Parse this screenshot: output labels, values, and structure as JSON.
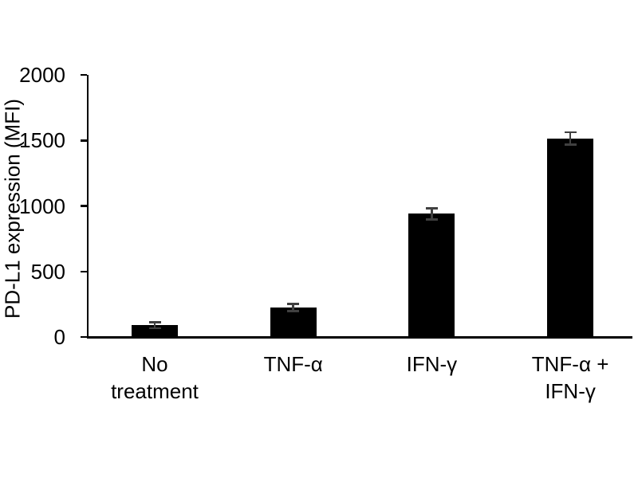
{
  "figure": {
    "background": "#ffffff"
  },
  "chart_data": {
    "type": "bar",
    "title": "",
    "ylabel": "PD-L1 expression (MFI)",
    "xlabel": "",
    "categories": [
      "No\ntreatment",
      "TNF-α",
      "IFN-γ",
      "TNF-α +\nIFN-γ"
    ],
    "values": [
      90,
      225,
      940,
      1515
    ],
    "errors": [
      30,
      35,
      50,
      55
    ],
    "ylim": [
      0,
      2000
    ],
    "yticks": [
      0,
      500,
      1000,
      1500,
      2000
    ],
    "grid": false,
    "legend": "none",
    "bar_color": "#000000",
    "error_bar_color": "#404040",
    "axis_color": "#000000",
    "text_color": "#000000"
  }
}
